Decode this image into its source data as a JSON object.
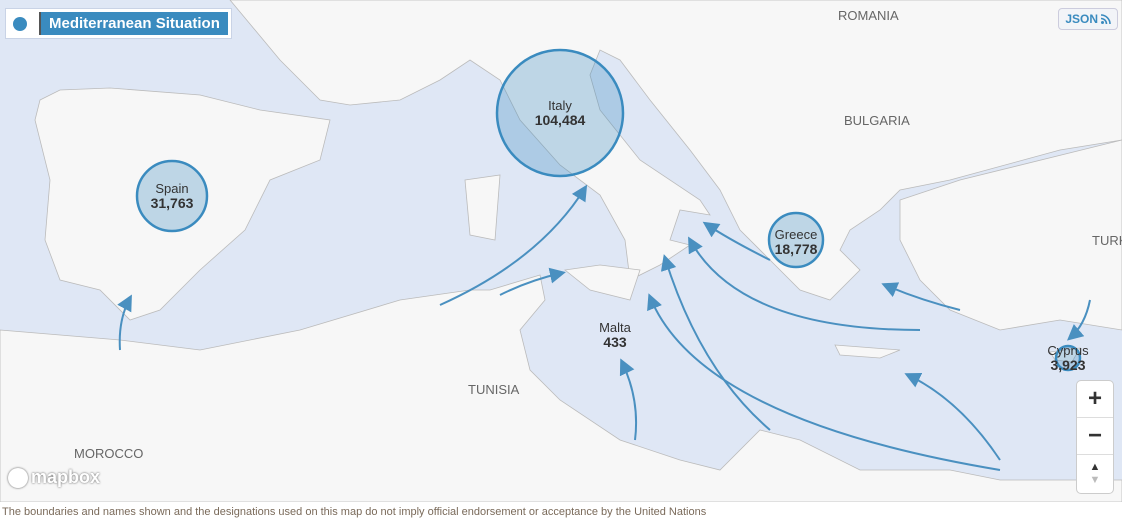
{
  "title": "Mediterranean Situation",
  "json_button": "JSON",
  "icons": {
    "title": "globe-icon",
    "json": "rss-icon"
  },
  "colors": {
    "accent": "#3a8bbf",
    "sea": "#dfe7f5",
    "land": "#f7f7f7"
  },
  "countries": [
    {
      "name": "Spain",
      "value": "31,763"
    },
    {
      "name": "Italy",
      "value": "104,484"
    },
    {
      "name": "Greece",
      "value": "18,778"
    },
    {
      "name": "Malta",
      "value": "433"
    },
    {
      "name": "Cyprus",
      "value": "3,923"
    }
  ],
  "map_labels": {
    "romania": "ROMANIA",
    "bulgaria": "BULGARIA",
    "turkey": "TURK",
    "tunisia": "TUNISIA",
    "morocco": "MOROCCO"
  },
  "controls": {
    "zoom_in": "+",
    "zoom_out": "−",
    "compass_up": "▲",
    "compass_down": "▼"
  },
  "attribution": "mapbox",
  "footer": "The boundaries and names shown and the designations used on this map do not imply official endorsement or acceptance by the United Nations"
}
